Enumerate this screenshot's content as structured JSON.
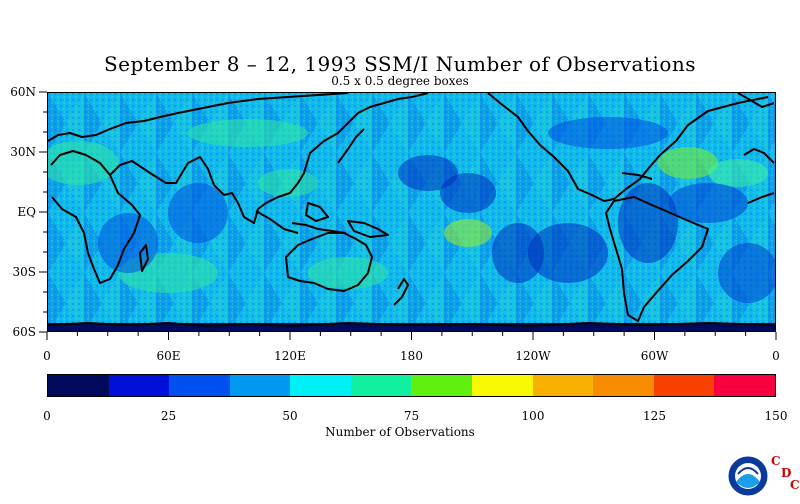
{
  "title": "September 8 – 12, 1993 SSM/I Number of Observations",
  "subtitle": "0.5 x 0.5 degree boxes",
  "lat_labels": [
    {
      "text": "60N",
      "lat": 60
    },
    {
      "text": "30N",
      "lat": 30
    },
    {
      "text": "EQ",
      "lat": 0
    },
    {
      "text": "30S",
      "lat": -30
    },
    {
      "text": "60S",
      "lat": -60
    }
  ],
  "lon_labels": [
    {
      "text": "0",
      "lon": 0
    },
    {
      "text": "60E",
      "lon": 60
    },
    {
      "text": "120E",
      "lon": 120
    },
    {
      "text": "180",
      "lon": 180
    },
    {
      "text": "120W",
      "lon": 240
    },
    {
      "text": "60W",
      "lon": 300
    },
    {
      "text": "0",
      "lon": 360
    }
  ],
  "colorbar": {
    "title": "Number of Observations",
    "colors": [
      "#000a5c",
      "#0010d8",
      "#0050f0",
      "#0098f0",
      "#00f0f8",
      "#10f0a0",
      "#60f010",
      "#f8f800",
      "#f8b000",
      "#f88c00",
      "#f84000",
      "#f80040"
    ],
    "labels": [
      "0",
      "25",
      "50",
      "75",
      "100",
      "125",
      "150"
    ]
  },
  "logo": {
    "icon": "noaa-logo",
    "letters": [
      "C",
      "D",
      "C"
    ]
  }
}
